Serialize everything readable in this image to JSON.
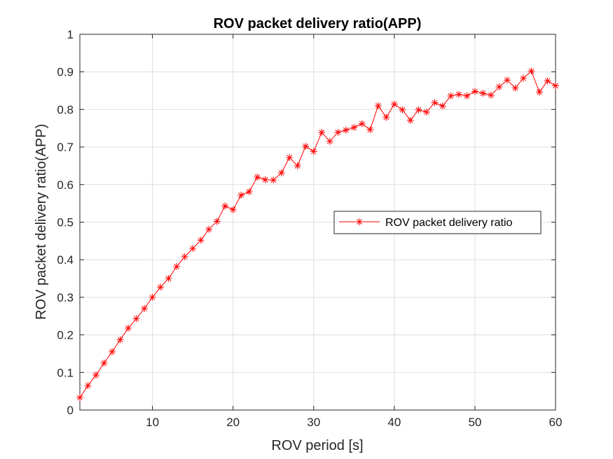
{
  "chart_data": {
    "type": "line",
    "title": "ROV packet delivery ratio(APP)",
    "xlabel": "ROV period [s]",
    "ylabel": "ROV packet delivery ratio(APP)",
    "xlim": [
      1,
      60
    ],
    "ylim": [
      0,
      1
    ],
    "xticks": [
      10,
      20,
      30,
      40,
      50,
      60
    ],
    "yticks": [
      0,
      0.1,
      0.2,
      0.3,
      0.4,
      0.5,
      0.6,
      0.7,
      0.8,
      0.9,
      1
    ],
    "grid": true,
    "legend": "right",
    "series": [
      {
        "name": "ROV packet delivery ratio",
        "color": "#ff0000",
        "marker": "asterisk",
        "x": [
          1,
          2,
          3,
          4,
          5,
          6,
          7,
          8,
          9,
          10,
          11,
          12,
          13,
          14,
          15,
          16,
          17,
          18,
          19,
          20,
          21,
          22,
          23,
          24,
          25,
          26,
          27,
          28,
          29,
          30,
          31,
          32,
          33,
          34,
          35,
          36,
          37,
          38,
          39,
          40,
          41,
          42,
          43,
          44,
          45,
          46,
          47,
          48,
          49,
          50,
          51,
          52,
          53,
          54,
          55,
          56,
          57,
          58,
          59,
          60
        ],
        "y": [
          0.033,
          0.065,
          0.093,
          0.125,
          0.155,
          0.187,
          0.218,
          0.243,
          0.27,
          0.3,
          0.327,
          0.35,
          0.382,
          0.408,
          0.43,
          0.452,
          0.481,
          0.502,
          0.543,
          0.533,
          0.572,
          0.581,
          0.62,
          0.613,
          0.612,
          0.631,
          0.672,
          0.65,
          0.702,
          0.688,
          0.739,
          0.715,
          0.739,
          0.745,
          0.752,
          0.762,
          0.746,
          0.81,
          0.779,
          0.814,
          0.799,
          0.771,
          0.799,
          0.793,
          0.818,
          0.809,
          0.836,
          0.84,
          0.836,
          0.848,
          0.843,
          0.838,
          0.86,
          0.878,
          0.857,
          0.883,
          0.902,
          0.846,
          0.876,
          0.863
        ]
      }
    ]
  }
}
